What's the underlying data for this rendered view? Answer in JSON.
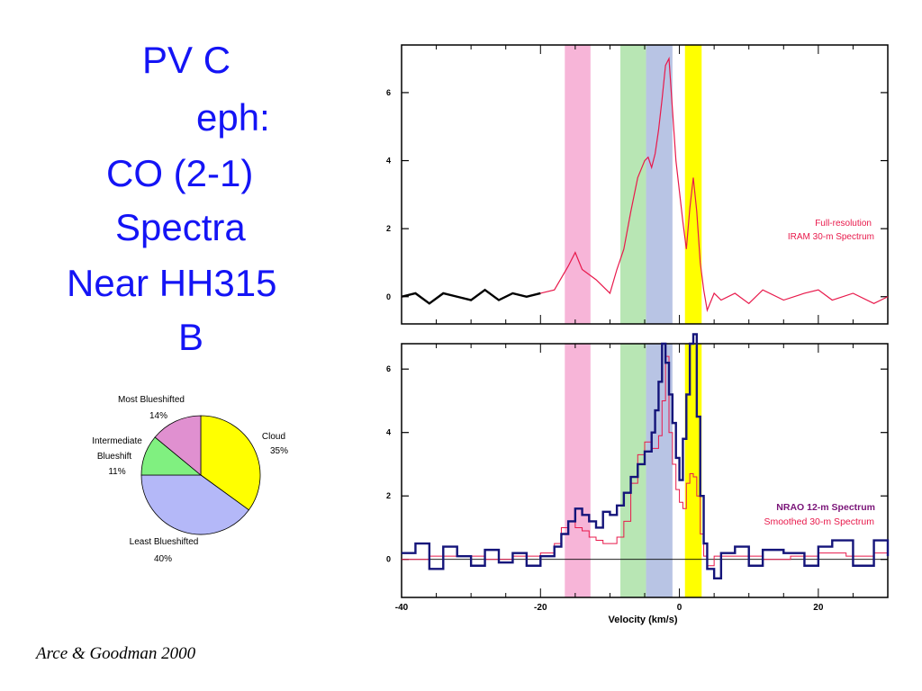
{
  "title_lines": [
    "PV C",
    "eph:",
    "CO (2-1)",
    "Spectra",
    "Near HH315",
    "B"
  ],
  "citation": "Arce & Goodman 2000",
  "colors": {
    "title": "#1414f5",
    "pink_band": "#f7b5d8",
    "green_band": "#b8e6b4",
    "blue_band": "#b8c4e4",
    "yellow_band": "#ffff00",
    "iram_line": "#e8194b",
    "nrao_line": "#14147a",
    "nrao_label": "#7a1478"
  },
  "chart_data": [
    {
      "type": "pie",
      "title": "",
      "slices": [
        {
          "label": "Cloud",
          "pct_label": "35%",
          "value": 35,
          "color": "#ffff00"
        },
        {
          "label": "Least Blueshifted",
          "pct_label": "40%",
          "value": 40,
          "color": "#b4b8f8"
        },
        {
          "label": "Intermediate Blueshift",
          "pct_label": "11%",
          "value": 11,
          "color": "#80f080"
        },
        {
          "label": "Most Blueshifted",
          "pct_label": "14%",
          "value": 14,
          "color": "#e090d0"
        }
      ]
    },
    {
      "type": "line",
      "title": "",
      "xlim": [
        -40,
        30
      ],
      "ylim": [
        -0.8,
        7.4
      ],
      "xticks": [
        -40,
        -20,
        0,
        20
      ],
      "yticks": [
        0,
        2,
        4,
        6
      ],
      "xlabel": "",
      "ylabel": "",
      "legend": [
        "Full-resolution",
        "IRAM 30-m Spectrum"
      ],
      "velocity_bands": [
        {
          "name": "most-blueshifted",
          "range": [
            -16.5,
            -12.8
          ]
        },
        {
          "name": "intermediate-blueshift",
          "range": [
            -8.5,
            -4.8
          ]
        },
        {
          "name": "least-blueshifted",
          "range": [
            -4.8,
            -1.0
          ]
        },
        {
          "name": "cloud",
          "range": [
            0.8,
            3.2
          ]
        }
      ],
      "series": [
        {
          "name": "Full-resolution IRAM 30-m Spectrum",
          "x": [
            -40,
            -38,
            -36,
            -34,
            -32,
            -30,
            -28,
            -26,
            -24,
            -22,
            -20,
            -18,
            -16,
            -15,
            -14,
            -12,
            -10,
            -9,
            -8,
            -7,
            -6,
            -5,
            -4.5,
            -4,
            -3.5,
            -3,
            -2.5,
            -2,
            -1.5,
            -1,
            -0.5,
            0,
            0.5,
            1,
            1.5,
            2,
            2.5,
            3,
            3.5,
            4,
            5,
            6,
            8,
            10,
            12,
            15,
            18,
            20,
            22,
            25,
            28,
            30
          ],
          "y": [
            0,
            0.1,
            -0.2,
            0.1,
            0,
            -0.1,
            0.2,
            -0.1,
            0.1,
            0,
            0.1,
            0.2,
            0.9,
            1.3,
            0.8,
            0.5,
            0.1,
            0.8,
            1.4,
            2.5,
            3.5,
            4.0,
            4.1,
            3.8,
            4.2,
            4.9,
            5.8,
            6.8,
            7.0,
            5.5,
            4.0,
            3.1,
            2.2,
            1.4,
            2.6,
            3.5,
            2.5,
            1.0,
            0.2,
            -0.4,
            0.1,
            -0.1,
            0.1,
            -0.2,
            0.2,
            -0.1,
            0.1,
            0.2,
            -0.1,
            0.1,
            -0.2,
            0
          ]
        }
      ]
    },
    {
      "type": "line",
      "title": "",
      "xlim": [
        -40,
        30
      ],
      "ylim": [
        -1.2,
        6.8
      ],
      "xticks": [
        -40,
        -20,
        0,
        20
      ],
      "yticks": [
        0,
        2,
        4,
        6
      ],
      "xlabel": "Velocity (km/s)",
      "ylabel": "",
      "legend": [
        "NRAO 12-m Spectrum",
        "Smoothed 30-m Spectrum"
      ],
      "velocity_bands": [
        {
          "name": "most-blueshifted",
          "range": [
            -16.5,
            -12.8
          ]
        },
        {
          "name": "intermediate-blueshift",
          "range": [
            -8.5,
            -4.8
          ]
        },
        {
          "name": "least-blueshifted",
          "range": [
            -4.8,
            -1.0
          ]
        },
        {
          "name": "cloud",
          "range": [
            0.8,
            3.2
          ]
        }
      ],
      "series": [
        {
          "name": "NRAO 12-m Spectrum",
          "x": [
            -40,
            -38,
            -36,
            -34,
            -32,
            -30,
            -28,
            -26,
            -24,
            -22,
            -20,
            -18,
            -17,
            -16,
            -15,
            -14,
            -13,
            -12,
            -11,
            -10,
            -9,
            -8,
            -7,
            -6,
            -5,
            -4,
            -3.5,
            -3,
            -2.5,
            -2,
            -1.5,
            -1,
            -0.5,
            0,
            0.5,
            1,
            1.5,
            2,
            2.5,
            3,
            3.5,
            4,
            5,
            6,
            8,
            10,
            12,
            15,
            18,
            20,
            22,
            25,
            28,
            30
          ],
          "y": [
            0.2,
            0.5,
            -0.3,
            0.4,
            0.1,
            -0.2,
            0.3,
            -0.1,
            0.2,
            -0.2,
            0.1,
            0.4,
            0.8,
            1.2,
            1.6,
            1.4,
            1.2,
            1.0,
            1.5,
            1.4,
            1.7,
            2.1,
            2.6,
            3.0,
            3.4,
            4.0,
            4.7,
            5.6,
            6.8,
            6.2,
            5.2,
            4.3,
            3.2,
            2.5,
            3.8,
            5.2,
            6.8,
            7.1,
            4.5,
            2.0,
            0.5,
            -0.3,
            -0.6,
            0.2,
            0.4,
            -0.2,
            0.3,
            0.2,
            -0.2,
            0.4,
            0.6,
            -0.2,
            0.6,
            0.1
          ]
        },
        {
          "name": "Smoothed 30-m Spectrum",
          "x": [
            -40,
            -36,
            -32,
            -28,
            -24,
            -20,
            -18,
            -17,
            -16,
            -15,
            -14,
            -13,
            -12,
            -11,
            -10,
            -9,
            -8,
            -7,
            -6,
            -5,
            -4,
            -3,
            -2.5,
            -2,
            -1.5,
            -1,
            -0.5,
            0,
            0.5,
            1,
            1.5,
            2,
            2.5,
            3,
            3.5,
            4,
            5,
            8,
            12,
            16,
            20,
            24,
            28,
            30
          ],
          "y": [
            0,
            0.1,
            0.1,
            0,
            0.1,
            0.2,
            0.5,
            1.0,
            1.2,
            1.0,
            0.9,
            0.7,
            0.6,
            0.5,
            0.5,
            0.7,
            1.2,
            2.4,
            3.3,
            3.7,
            3.5,
            3.9,
            5.0,
            6.4,
            4.0,
            3.0,
            2.2,
            1.8,
            1.6,
            2.4,
            2.7,
            2.6,
            2.0,
            0.8,
            0.1,
            -0.2,
            0.1,
            0.1,
            0,
            0.1,
            0.2,
            0.1,
            0.2,
            0.1
          ]
        }
      ]
    }
  ]
}
